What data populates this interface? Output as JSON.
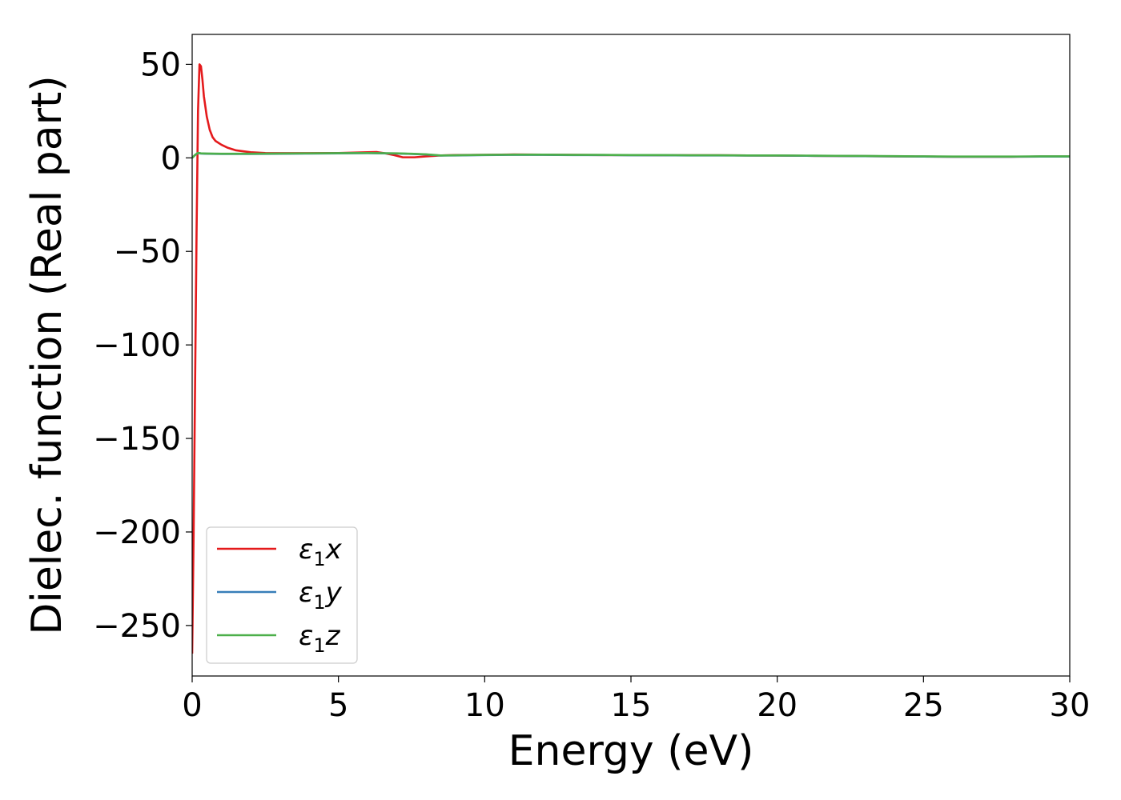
{
  "chart_data": {
    "type": "line",
    "title": "",
    "xlabel": "Energy (eV)",
    "ylabel": "Dielec. function (Real part)",
    "xlim": [
      0,
      30
    ],
    "ylim": [
      -277,
      66
    ],
    "xticks": [
      0,
      5,
      10,
      15,
      20,
      25,
      30
    ],
    "xtick_labels": [
      "0",
      "5",
      "10",
      "15",
      "20",
      "25",
      "30"
    ],
    "yticks": [
      50,
      0,
      -50,
      -100,
      -150,
      -200,
      -250
    ],
    "ytick_labels": [
      "50",
      "0",
      "−50",
      "−100",
      "−150",
      "−200",
      "−250"
    ],
    "grid": false,
    "legend_position": "lower-left",
    "series": [
      {
        "name": "ε₁x",
        "legend_symbol": "ε",
        "legend_sub": "1",
        "legend_suffix": "x",
        "color": "#e41a1c",
        "x": [
          0,
          0.05,
          0.1,
          0.15,
          0.2,
          0.25,
          0.3,
          0.35,
          0.4,
          0.5,
          0.6,
          0.7,
          0.8,
          1.0,
          1.2,
          1.5,
          2.0,
          2.5,
          3.0,
          4.0,
          5.0,
          6.0,
          6.3,
          6.6,
          6.9,
          7.2,
          7.6,
          8.0,
          8.5,
          9.0,
          10.0,
          11.0,
          12.0,
          13.0,
          14.0,
          15.0,
          16.0,
          17.0,
          18.0,
          19.0,
          20.0,
          21.0,
          22.0,
          23.0,
          24.0,
          25.0,
          26.0,
          27.0,
          28.0,
          29.0,
          30.0
        ],
        "y": [
          -265,
          -200,
          -120,
          -40,
          25,
          50,
          49,
          42,
          33,
          22,
          15,
          11,
          9,
          7,
          5.5,
          4,
          3,
          2.6,
          2.5,
          2.5,
          2.6,
          3.0,
          3.1,
          2.4,
          1.5,
          0.3,
          0.3,
          0.8,
          1.3,
          1.5,
          1.6,
          1.8,
          1.7,
          1.6,
          1.5,
          1.5,
          1.4,
          1.4,
          1.4,
          1.3,
          1.2,
          1.1,
          1.0,
          0.9,
          0.8,
          0.7,
          0.6,
          0.6,
          0.6,
          0.7,
          0.7
        ]
      },
      {
        "name": "ε₁y",
        "legend_symbol": "ε",
        "legend_sub": "1",
        "legend_suffix": "y",
        "color": "#377eb8",
        "x": [
          0,
          0.1,
          0.2,
          0.3,
          0.5,
          1.0,
          2.0,
          3.0,
          4.0,
          5.0,
          6.0,
          7.0,
          7.5,
          8.0,
          8.5,
          9.0,
          10.0,
          11.0,
          12.0,
          13.0,
          14.0,
          15.0,
          16.0,
          17.0,
          18.0,
          19.0,
          20.0,
          21.0,
          22.0,
          23.0,
          24.0,
          25.0,
          26.0,
          27.0,
          28.0,
          29.0,
          30.0
        ],
        "y": [
          0,
          1.5,
          2.6,
          2.3,
          2.2,
          2.1,
          2.1,
          2.2,
          2.3,
          2.4,
          2.5,
          2.3,
          2.1,
          1.8,
          1.2,
          1.3,
          1.5,
          1.6,
          1.6,
          1.5,
          1.5,
          1.4,
          1.4,
          1.3,
          1.3,
          1.2,
          1.2,
          1.1,
          1.0,
          0.9,
          0.8,
          0.7,
          0.6,
          0.6,
          0.6,
          0.7,
          0.7
        ]
      },
      {
        "name": "ε₁z",
        "legend_symbol": "ε",
        "legend_sub": "1",
        "legend_suffix": "z",
        "color": "#4daf4a",
        "x": [
          0,
          0.1,
          0.2,
          0.3,
          0.5,
          1.0,
          2.0,
          3.0,
          4.0,
          5.0,
          6.0,
          7.0,
          7.5,
          8.0,
          8.5,
          9.0,
          10.0,
          11.0,
          12.0,
          13.0,
          14.0,
          15.0,
          16.0,
          17.0,
          18.0,
          19.0,
          20.0,
          21.0,
          22.0,
          23.0,
          24.0,
          25.0,
          26.0,
          27.0,
          28.0,
          29.0,
          30.0
        ],
        "y": [
          0,
          1.6,
          2.7,
          2.4,
          2.3,
          2.2,
          2.2,
          2.3,
          2.4,
          2.5,
          2.6,
          2.4,
          2.2,
          1.9,
          1.3,
          1.4,
          1.6,
          1.7,
          1.7,
          1.6,
          1.6,
          1.5,
          1.5,
          1.4,
          1.4,
          1.3,
          1.3,
          1.2,
          1.1,
          1.0,
          0.9,
          0.8,
          0.7,
          0.7,
          0.7,
          0.8,
          0.8
        ]
      }
    ]
  }
}
